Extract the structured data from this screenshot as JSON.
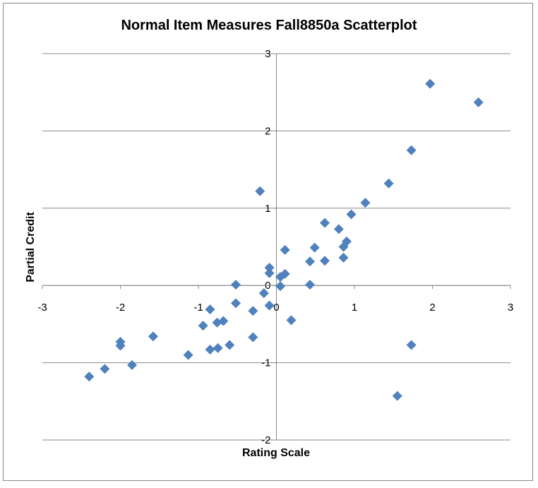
{
  "chart_data": {
    "type": "scatter",
    "title": "Normal Item Measures Fall8850a Scatterplot",
    "x_label": "Rating Scale",
    "y_label": "Partial Credit",
    "x": [
      1.97,
      2.59,
      1.73,
      1.44,
      1.14,
      -0.21,
      0.96,
      0.62,
      0.8,
      0.9,
      0.86,
      0.49,
      0.11,
      0.86,
      0.62,
      0.43,
      -0.09,
      -0.09,
      0.11,
      0.05,
      -0.52,
      0.43,
      0.05,
      -0.16,
      -0.52,
      -0.09,
      -0.3,
      -0.85,
      0.19,
      -0.68,
      -0.76,
      -0.94,
      -1.58,
      -0.3,
      -2.0,
      -2.0,
      1.73,
      -0.6,
      -0.75,
      -0.85,
      -1.13,
      -1.85,
      -2.2,
      -2.4,
      1.55
    ],
    "y": [
      2.61,
      2.37,
      1.75,
      1.32,
      1.07,
      1.22,
      0.92,
      0.81,
      0.73,
      0.57,
      0.5,
      0.49,
      0.46,
      0.36,
      0.32,
      0.31,
      0.23,
      0.16,
      0.15,
      0.11,
      0.01,
      0.01,
      -0.01,
      -0.1,
      -0.23,
      -0.26,
      -0.33,
      -0.31,
      -0.45,
      -0.46,
      -0.48,
      -0.52,
      -0.66,
      -0.67,
      -0.73,
      -0.78,
      -0.77,
      -0.77,
      -0.81,
      -0.83,
      -0.9,
      -1.03,
      -1.08,
      -1.18,
      -1.43
    ],
    "color": "#4f81bd",
    "xlim": [
      -3,
      3
    ],
    "xticks": [
      -3,
      -2,
      -1,
      0,
      1,
      2,
      3
    ],
    "ylim": [
      -2,
      3
    ],
    "yticks": [
      -2,
      -1,
      0,
      1,
      2,
      3
    ],
    "grid": true
  }
}
